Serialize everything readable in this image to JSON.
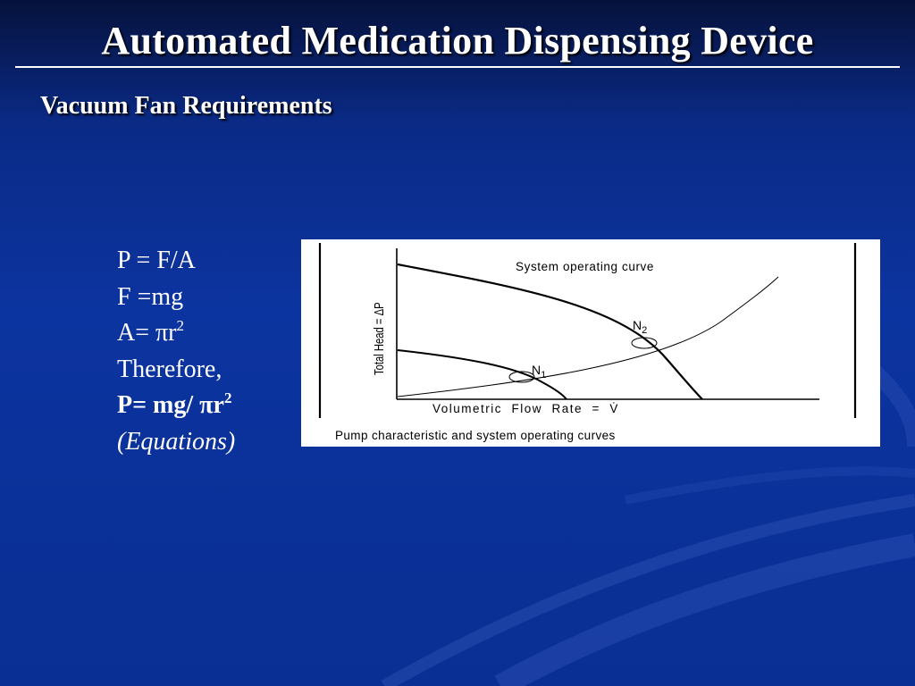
{
  "slide": {
    "title": "Automated Medication Dispensing Device",
    "subtitle": "Vacuum Fan Requirements"
  },
  "equations": {
    "line1": "P = F/A",
    "line2": "F =mg",
    "line3_base": "A= πr",
    "line3_sup": "2",
    "line4": "Therefore,",
    "line5_base": "P= mg/ πr",
    "line5_sup": "2",
    "line6": "(Equations)"
  },
  "figure": {
    "curve_label": "System operating curve",
    "y_axis_label": "Total Head = ΔP",
    "x_axis_label": "Volumetric  Flow  Rate  =  V̇",
    "point_n1_base": "N",
    "point_n1_sub": "1",
    "point_n2_base": "N",
    "point_n2_sub": "2",
    "caption": "Pump characteristic and system operating curves"
  },
  "colors": {
    "background_top": "#06123c",
    "background_main": "#0c34a0",
    "text": "#ffffff",
    "figure_background": "#ffffff",
    "figure_ink": "#000000"
  }
}
